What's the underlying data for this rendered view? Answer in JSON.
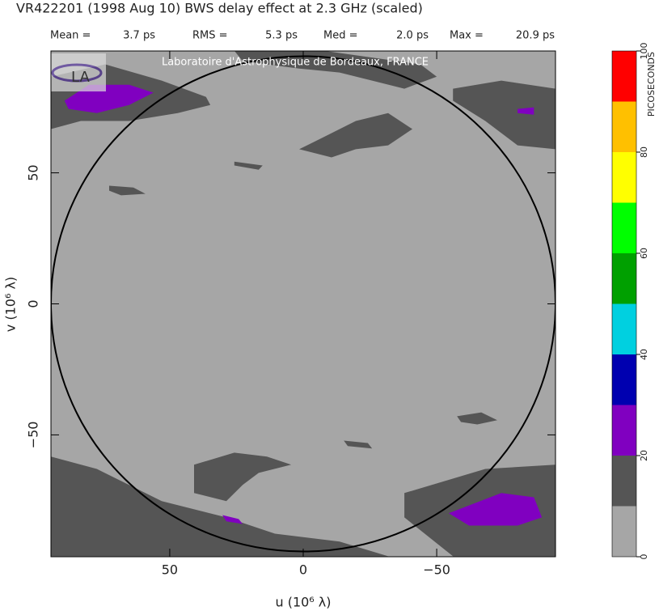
{
  "chart_data": {
    "type": "contour",
    "title": "VR422201  (1998 Aug 10)   BWS delay effect at  2.3 GHz (scaled)",
    "stats": [
      {
        "label": "Mean =",
        "value": "3.7 ps"
      },
      {
        "label": "RMS =",
        "value": "5.3 ps"
      },
      {
        "label": "Med =",
        "value": "2.0 ps"
      },
      {
        "label": "Max =",
        "value": "20.9 ps"
      }
    ],
    "watermark": "Laboratoire d'Astrophysique de Bordeaux, FRANCE",
    "xlabel": "u  (10⁶ λ)",
    "ylabel": "v  (10⁶ λ)",
    "xlim": [
      94.5,
      -94.5
    ],
    "ylim": [
      -96.5,
      96.5
    ],
    "xticks": [
      50,
      0,
      {
        "value": -50,
        "label": "−50"
      }
    ],
    "yticks": [
      {
        "value": -50,
        "label": "−50"
      },
      0,
      50
    ],
    "circle_radius": 94.5,
    "colorbar": {
      "label": "PICOSECONDS",
      "levels": [
        0,
        10,
        20,
        30,
        40,
        50,
        60,
        70,
        80,
        90,
        100
      ],
      "colors": [
        "#a6a6a6",
        "#555555",
        "#8000c0",
        "#0000b0",
        "#00d0e0",
        "#00a000",
        "#00ff00",
        "#ffff00",
        "#ffc000",
        "#ff0000"
      ],
      "ticks": [
        0,
        20,
        40,
        60,
        80,
        100
      ]
    },
    "contours": [
      {
        "level": 10,
        "u": [
          94.5,
          74.2,
          53,
          36.4,
          34.8,
          47,
          65.2,
          83.3,
          94.5
        ],
        "v": [
          86.7,
          91.4,
          85.2,
          79,
          75.9,
          72.8,
          69.8,
          69.8,
          66.7
        ]
      },
      {
        "level": 10,
        "u": [
          25.8,
          -7.6,
          -43.9,
          -50,
          -37.9,
          -25.8,
          -13.6,
          1.5,
          22.7
        ],
        "v": [
          96.6,
          96.6,
          91.4,
          86.7,
          82.1,
          85.2,
          88.3,
          89.8,
          92.6
        ]
      },
      {
        "level": 10,
        "u": [
          -56.1,
          -74.2,
          -94.5,
          -94.5,
          -80.3,
          -68.2,
          -56.1
        ],
        "v": [
          82.1,
          85.2,
          82.1,
          59,
          60.5,
          69.8,
          77.5
        ]
      },
      {
        "level": 10,
        "u": [
          1.5,
          -7.6,
          -19.7,
          -31.8,
          -40.9,
          -31.8,
          -19.7,
          -10.6
        ],
        "v": [
          59,
          63.6,
          69.8,
          72.8,
          66.7,
          60.5,
          59,
          55.9
        ]
      },
      {
        "level": 10,
        "u": [
          25.8,
          15.2,
          16.7,
          25.8
        ],
        "v": [
          54.3,
          52.8,
          51.2,
          52.8
        ]
      },
      {
        "level": 10,
        "u": [
          72.7,
          63.6,
          59.1,
          68.2,
          72.7
        ],
        "v": [
          45.1,
          44.4,
          42,
          41.4,
          43.2
        ]
      },
      {
        "level": 10,
        "u": [
          -57.6,
          -66.7,
          -72.7,
          -65.2,
          -59.1
        ],
        "v": [
          -42.9,
          -41.4,
          -44.4,
          -46,
          -45.1
        ]
      },
      {
        "level": 10,
        "u": [
          -15.2,
          -24.2,
          -25.8,
          -16.7
        ],
        "v": [
          -52.2,
          -53.1,
          -55.2,
          -54.3
        ]
      },
      {
        "level": 10,
        "u": [
          40.9,
          25.8,
          13.6,
          4.5,
          16.7,
          22.7,
          28.8,
          40.9
        ],
        "v": [
          -61.4,
          -56.8,
          -58.3,
          -61.4,
          -64.5,
          -69.1,
          -75.3,
          -72.2
        ]
      },
      {
        "level": 10,
        "u": [
          94.5,
          77.3,
          53,
          28.8,
          10.6,
          -13.6,
          -31.8,
          94.5
        ],
        "v": [
          -58.3,
          -63,
          -75.3,
          -81.5,
          -87.7,
          -90.7,
          -96.3,
          -96.3
        ]
      },
      {
        "level": 10,
        "u": [
          -37.9,
          -68.2,
          -94.5,
          -94.5,
          -56.1,
          -37.9
        ],
        "v": [
          -72.2,
          -63,
          -61.4,
          -96.3,
          -96.3,
          -81.5
        ]
      },
      {
        "level": 20,
        "u": [
          89.4,
          80.3,
          65.2,
          56.1,
          65.2,
          77.3,
          87.9
        ],
        "v": [
          77.5,
          83.6,
          83.6,
          80.6,
          75.9,
          72.8,
          74.4
        ]
      },
      {
        "level": 20,
        "u": [
          -80.3,
          -86.4,
          -86.4,
          -80.3
        ],
        "v": [
          74.4,
          75,
          72.2,
          72.8
        ]
      },
      {
        "level": 20,
        "u": [
          -54.5,
          -74.2,
          -86.4,
          -89.4,
          -80.3,
          -62.1
        ],
        "v": [
          -79.9,
          -72.2,
          -73.8,
          -81.5,
          -84.6,
          -84.6
        ]
      },
      {
        "level": 20,
        "u": [
          30.3,
          24.2,
          22.7,
          28.8
        ],
        "v": [
          -80.6,
          -82.1,
          -84,
          -83
        ]
      }
    ]
  }
}
